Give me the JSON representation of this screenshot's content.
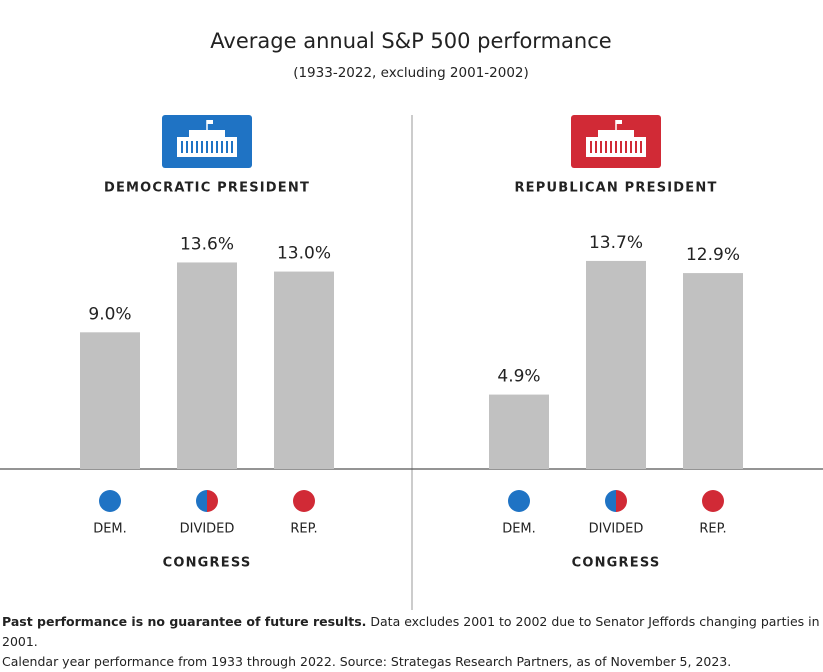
{
  "header": {
    "title": "Average annual S&P 500 performance",
    "subtitle": "(1933-2022, excluding 2001-2002)"
  },
  "chart_data": [
    {
      "type": "bar",
      "title": "DEMOCRATIC PRESIDENT",
      "badge_color": "#1f73c4",
      "categories": [
        "DEM.",
        "DIVIDED",
        "REP."
      ],
      "values": [
        9.0,
        13.6,
        13.0
      ],
      "value_labels": [
        "9.0%",
        "13.6%",
        "13.0%"
      ],
      "color": "#c1c1c1",
      "xlabel": "CONGRESS",
      "ylim": [
        0,
        16
      ]
    },
    {
      "type": "bar",
      "title": "REPUBLICAN PRESIDENT",
      "badge_color": "#d12a36",
      "categories": [
        "DEM.",
        "DIVIDED",
        "REP."
      ],
      "values": [
        4.9,
        13.7,
        12.9
      ],
      "value_labels": [
        "4.9%",
        "13.7%",
        "12.9%"
      ],
      "color": "#c1c1c1",
      "xlabel": "CONGRESS",
      "ylim": [
        0,
        16
      ]
    }
  ],
  "footnote": {
    "emphasis": "Past performance is no guarantee of future results.",
    "lines": [
      "Data excludes 2001 to 2002 due to Senator Jeffords changing parties in 2001.",
      "Calendar year performance from 1933 through 2022. Source: Strategas Research Partners, as of November 5, 2023."
    ]
  }
}
